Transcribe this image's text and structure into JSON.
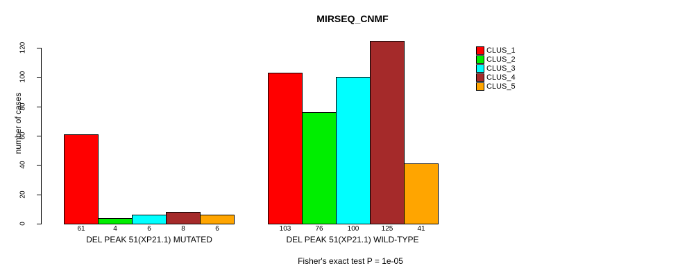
{
  "chart_data": {
    "type": "bar",
    "title": "MIRSEQ_CNMF",
    "ylabel": "number of cases",
    "ylim": [
      0,
      125
    ],
    "yticks": [
      0,
      20,
      40,
      60,
      80,
      100,
      120
    ],
    "grid": false,
    "legend_position": "right",
    "categories": [
      "DEL PEAK 51(XP21.1) MUTATED",
      "DEL PEAK 51(XP21.1) WILD-TYPE"
    ],
    "groups": [
      {
        "label": "DEL PEAK 51(XP21.1) MUTATED",
        "values": [
          61,
          4,
          6,
          8,
          6
        ]
      },
      {
        "label": "DEL PEAK 51(XP21.1) WILD-TYPE",
        "values": [
          103,
          76,
          100,
          125,
          41
        ]
      }
    ],
    "series": [
      {
        "name": "CLUS_1",
        "color": "#FF0000",
        "values": [
          61,
          103
        ]
      },
      {
        "name": "CLUS_2",
        "color": "#00EE00",
        "values": [
          4,
          76
        ]
      },
      {
        "name": "CLUS_3",
        "color": "#00FFFF",
        "values": [
          6,
          100
        ]
      },
      {
        "name": "CLUS_4",
        "color": "#A52A2A",
        "values": [
          8,
          125
        ]
      },
      {
        "name": "CLUS_5",
        "color": "#FFA500",
        "values": [
          6,
          41
        ]
      }
    ],
    "legend": [
      {
        "label": "CLUS_1",
        "color": "#FF0000"
      },
      {
        "label": "CLUS_2",
        "color": "#00EE00"
      },
      {
        "label": "CLUS_3",
        "color": "#00FFFF"
      },
      {
        "label": "CLUS_4",
        "color": "#A52A2A"
      },
      {
        "label": "CLUS_5",
        "color": "#FFA500"
      }
    ],
    "annotation": "Fisher's exact test P = 1e-05",
    "bar_value_labels": [
      [
        61,
        4,
        6,
        8,
        6
      ],
      [
        103,
        76,
        100,
        125,
        41
      ]
    ]
  }
}
